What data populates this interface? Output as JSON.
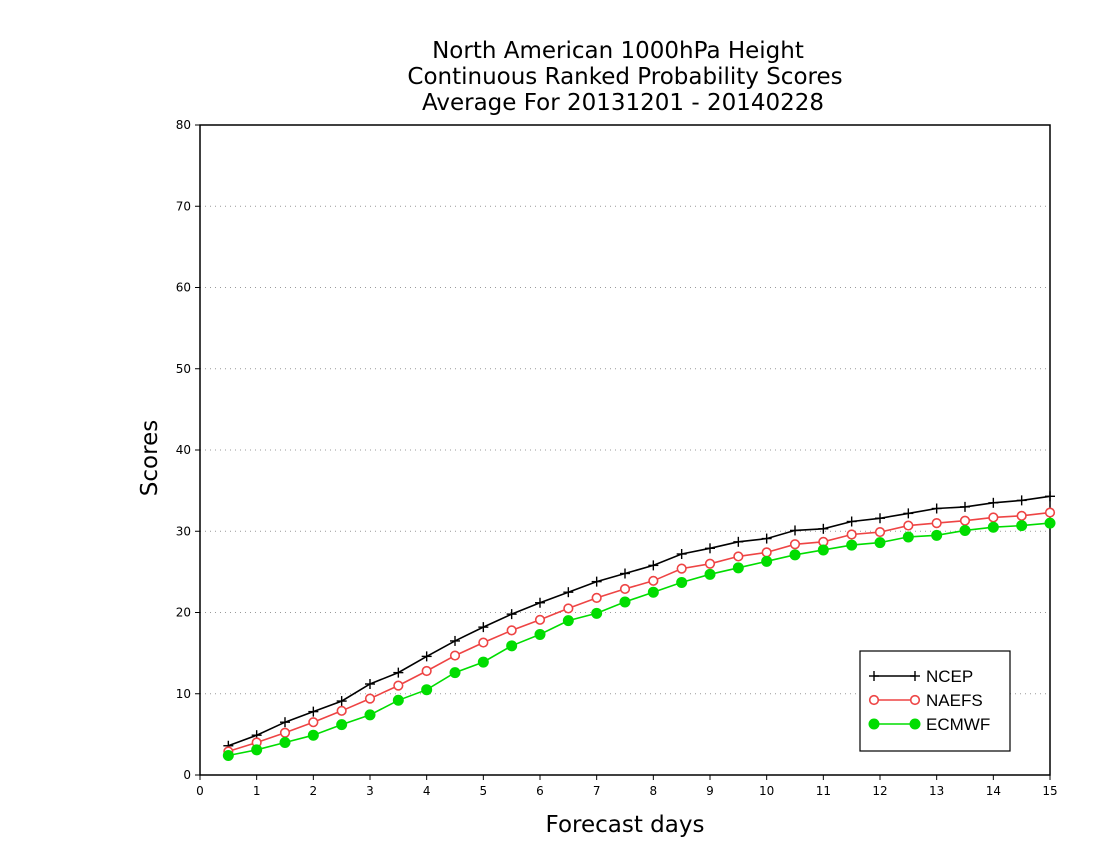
{
  "chart_data": {
    "type": "line",
    "title": [
      "North American 1000hPa Height",
      "Continuous Ranked Probability Scores",
      "Average For 20131201 - 20140228"
    ],
    "xlabel": "Forecast days",
    "ylabel": "Scores",
    "xlim": [
      0,
      15
    ],
    "ylim": [
      0,
      80
    ],
    "xticks": [
      0,
      1,
      2,
      3,
      4,
      5,
      6,
      7,
      8,
      9,
      10,
      11,
      12,
      13,
      14,
      15
    ],
    "yticks": [
      0,
      10,
      20,
      30,
      40,
      50,
      60,
      70,
      80
    ],
    "grid": "horizontal dotted",
    "legend_position": "bottom-right",
    "x": [
      0.5,
      1,
      1.5,
      2,
      2.5,
      3,
      3.5,
      4,
      4.5,
      5,
      5.5,
      6,
      6.5,
      7,
      7.5,
      8,
      8.5,
      9,
      9.5,
      10,
      10.5,
      11,
      11.5,
      12,
      12.5,
      13,
      13.5,
      14,
      14.5,
      15
    ],
    "series": [
      {
        "name": "NCEP",
        "color": "#000000",
        "marker": "plus",
        "values": [
          3.6,
          4.9,
          6.5,
          7.8,
          9.1,
          11.2,
          12.6,
          14.6,
          16.5,
          18.2,
          19.8,
          21.2,
          22.5,
          23.8,
          24.8,
          25.8,
          27.2,
          27.9,
          28.7,
          29.1,
          30.1,
          30.3,
          31.2,
          31.6,
          32.2,
          32.8,
          33.0,
          33.5,
          33.8,
          34.3
        ]
      },
      {
        "name": "NAEFS",
        "color": "#ee4444",
        "marker": "open-circle",
        "values": [
          2.9,
          4.0,
          5.2,
          6.5,
          7.9,
          9.4,
          11.0,
          12.8,
          14.7,
          16.3,
          17.8,
          19.1,
          20.5,
          21.8,
          22.9,
          23.9,
          25.4,
          26.0,
          26.9,
          27.4,
          28.4,
          28.7,
          29.6,
          29.9,
          30.7,
          31.0,
          31.3,
          31.7,
          31.9,
          32.3
        ]
      },
      {
        "name": "ECMWF",
        "color": "#00dd00",
        "marker": "filled-circle",
        "values": [
          2.4,
          3.1,
          4.0,
          4.9,
          6.2,
          7.4,
          9.2,
          10.5,
          12.6,
          13.9,
          15.9,
          17.3,
          19.0,
          19.9,
          21.3,
          22.5,
          23.7,
          24.7,
          25.5,
          26.3,
          27.1,
          27.7,
          28.3,
          28.6,
          29.3,
          29.5,
          30.1,
          30.5,
          30.7,
          31.0
        ]
      }
    ]
  }
}
